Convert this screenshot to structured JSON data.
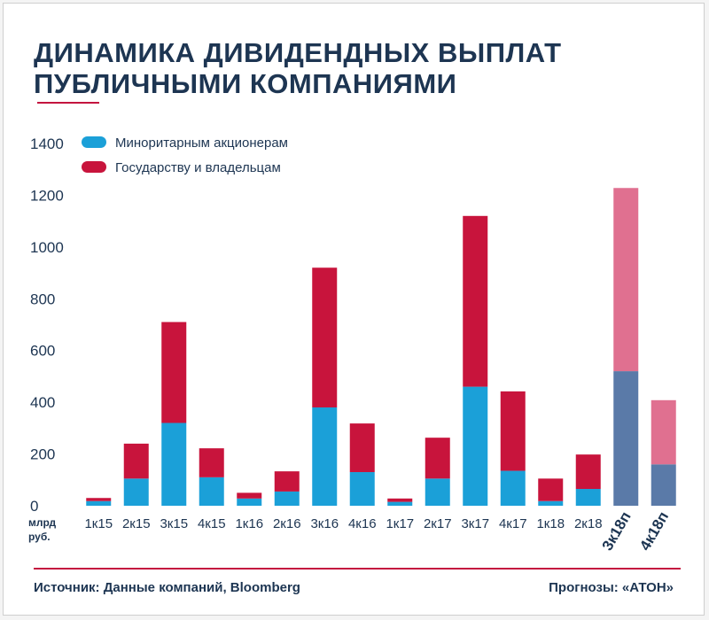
{
  "title_line1": "ДИНАМИКА ДИВИДЕНДНЫХ ВЫПЛАТ",
  "title_line2": "ПУБЛИЧНЫМИ КОМПАНИЯМИ",
  "footer": {
    "source": "Источник: Данные компаний, Bloomberg",
    "forecast": "Прогнозы: «АТОН»"
  },
  "colors": {
    "minority": "#1ba0d8",
    "state": "#c8143c",
    "minority_forecast": "#5a7aa8",
    "state_forecast": "#e07090",
    "title": "#1d3552",
    "accent_rule": "#c4143f"
  },
  "chart_data": {
    "type": "bar",
    "stacked": true,
    "y_unit_label": [
      "млрд",
      "руб."
    ],
    "ylim": [
      0,
      1400
    ],
    "yticks": [
      0,
      200,
      400,
      600,
      800,
      1000,
      1200,
      1400
    ],
    "grid": false,
    "legend_position": "top-left",
    "categories": [
      "1к15",
      "2к15",
      "3к15",
      "4к15",
      "1к16",
      "2к16",
      "3к16",
      "4к16",
      "1к17",
      "2к17",
      "3к17",
      "4к17",
      "1к18",
      "2к18",
      "3к18п",
      "4к18п"
    ],
    "forecast_categories": [
      "3к18п",
      "4к18п"
    ],
    "series": [
      {
        "name": "Миноритарным акционерам",
        "values": [
          18,
          105,
          320,
          110,
          28,
          55,
          380,
          130,
          15,
          105,
          460,
          135,
          18,
          65,
          520,
          160
        ]
      },
      {
        "name": "Государству и владельцам",
        "values": [
          12,
          135,
          390,
          112,
          22,
          78,
          540,
          188,
          13,
          158,
          660,
          307,
          87,
          133,
          708,
          248
        ]
      }
    ]
  }
}
